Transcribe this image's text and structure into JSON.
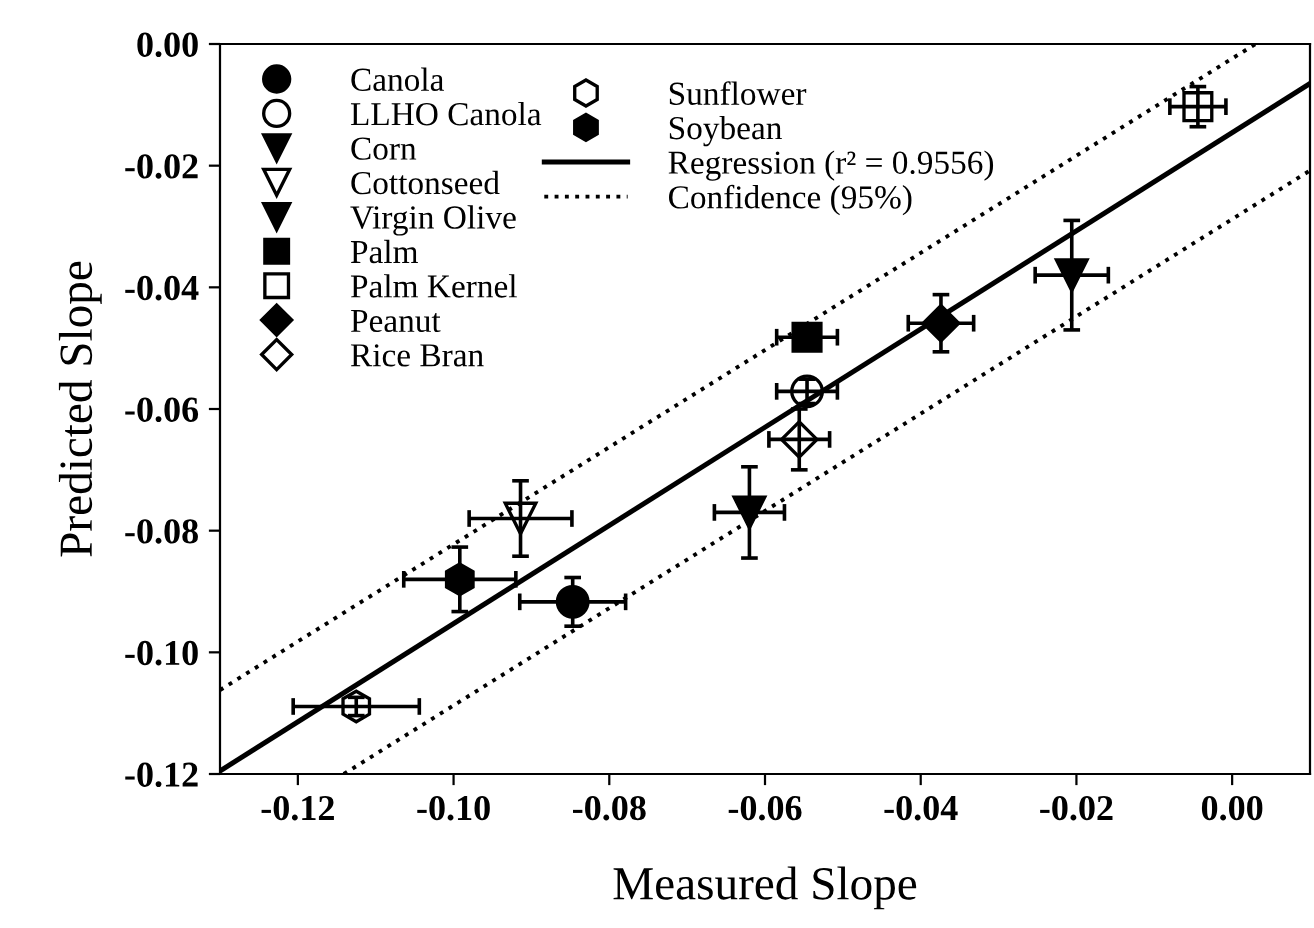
{
  "chart_data": {
    "type": "scatter",
    "xlabel": "Measured Slope",
    "ylabel": "Predicted Slope",
    "xlim": [
      -0.13,
      0.01
    ],
    "ylim": [
      -0.12,
      0.0
    ],
    "xticks": [
      {
        "value": -0.12,
        "label": "-0.12"
      },
      {
        "value": -0.1,
        "label": "-0.10"
      },
      {
        "value": -0.08,
        "label": "-0.08"
      },
      {
        "value": -0.06,
        "label": "-0.06"
      },
      {
        "value": -0.04,
        "label": "-0.04"
      },
      {
        "value": -0.02,
        "label": "-0.02"
      },
      {
        "value": 0.0,
        "label": "0.00"
      }
    ],
    "yticks": [
      {
        "value": -0.12,
        "label": "-0.12"
      },
      {
        "value": -0.1,
        "label": "-0.10"
      },
      {
        "value": -0.08,
        "label": "-0.08"
      },
      {
        "value": -0.06,
        "label": "-0.06"
      },
      {
        "value": -0.04,
        "label": "-0.04"
      },
      {
        "value": -0.02,
        "label": "-0.02"
      },
      {
        "value": 0.0,
        "label": "0.00"
      }
    ],
    "grid": false,
    "legend": "top left",
    "series": [
      {
        "name": "Canola",
        "color": "#000000",
        "marker": "circle",
        "x": [
          -0.0847
        ],
        "values": [
          -0.0917
        ],
        "xerrors": [
          0.0068
        ],
        "errors": [
          0.004
        ]
      },
      {
        "name": "LLHO Canola",
        "color": "#ffffff",
        "marker": "circle",
        "x": [
          -0.0546
        ],
        "values": [
          -0.0571
        ],
        "xerrors": [
          0.0039
        ],
        "errors": [
          0.002
        ]
      },
      {
        "name": "Corn",
        "color": "#000000",
        "marker": "triangle",
        "x": [
          -0.062
        ],
        "values": [
          -0.077
        ],
        "xerrors": [
          0.0045
        ],
        "errors": [
          0.0075
        ]
      },
      {
        "name": "Cottonseed",
        "color": "#ffffff",
        "marker": "triangle",
        "x": [
          -0.0914
        ],
        "values": [
          -0.078
        ],
        "xerrors": [
          0.0066
        ],
        "errors": [
          0.0062
        ]
      },
      {
        "name": "Virgin Olive",
        "color": "#000000",
        "marker": "triangle",
        "x": [
          -0.0206
        ],
        "values": [
          -0.038
        ],
        "xerrors": [
          0.0047
        ],
        "errors": [
          0.009
        ]
      },
      {
        "name": "Palm",
        "color": "#000000",
        "marker": "square",
        "x": [
          -0.0546
        ],
        "values": [
          -0.0482
        ],
        "xerrors": [
          0.0039
        ],
        "errors": [
          0.001
        ]
      },
      {
        "name": "Palm Kernel",
        "color": "#ffffff",
        "marker": "square",
        "x": [
          -0.0044
        ],
        "values": [
          -0.0103
        ],
        "xerrors": [
          0.0036
        ],
        "errors": [
          0.0033
        ]
      },
      {
        "name": "Peanut",
        "color": "#000000",
        "marker": "diamond",
        "x": [
          -0.0374
        ],
        "values": [
          -0.0459
        ],
        "xerrors": [
          0.0042
        ],
        "errors": [
          0.0047
        ]
      },
      {
        "name": "Rice Bran",
        "color": "#ffffff",
        "marker": "diamond",
        "x": [
          -0.0556
        ],
        "values": [
          -0.065
        ],
        "xerrors": [
          0.0039
        ],
        "errors": [
          0.005
        ]
      },
      {
        "name": "Sunflower",
        "color": "#ffffff",
        "x": [
          -0.1125
        ],
        "values": [
          -0.1089
        ],
        "xerrors": [
          0.0081
        ],
        "errors": [
          0.0015
        ]
      },
      {
        "name": "Soybean",
        "color": "#000000",
        "x": [
          -0.0992
        ],
        "values": [
          -0.088
        ],
        "xerrors": [
          0.0072
        ],
        "errors": [
          0.0053
        ]
      },
      {
        "name": "Regression (r² = 0.9556)",
        "type": "line",
        "line_style": "solid",
        "color": "#000000",
        "x": [
          -0.13,
          0.01
        ],
        "values": [
          -0.1195,
          -0.0065
        ]
      },
      {
        "name": "Confidence (95%)",
        "type": "line",
        "line_style": "dotted",
        "color": "#000000",
        "x": [
          -0.13,
          0.003
        ],
        "values": [
          -0.1062,
          0.0
        ]
      },
      {
        "type": "line",
        "line_style": "dotted",
        "color": "#000000",
        "x": [
          -0.1141,
          0.01
        ],
        "values": [
          -0.12,
          -0.0208
        ]
      }
    ]
  }
}
